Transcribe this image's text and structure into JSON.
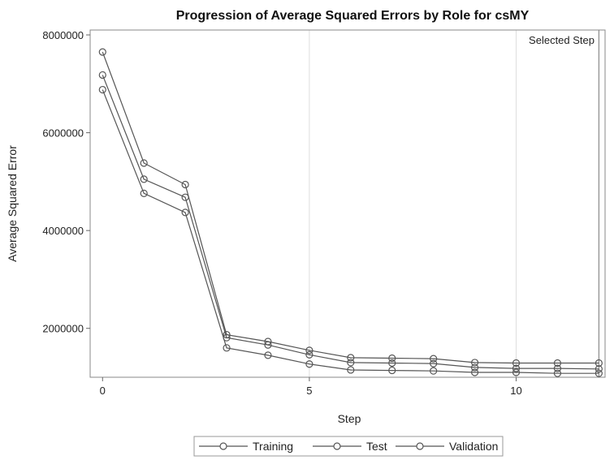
{
  "chart_data": {
    "type": "line",
    "title": "Progression of Average Squared Errors by Role for csMY",
    "xlabel": "Step",
    "ylabel": "Average Squared Error",
    "xlim": [
      -0.3,
      12.15
    ],
    "ylim": [
      1000000,
      8100000
    ],
    "xticks": [
      0,
      5,
      10
    ],
    "yticks": [
      2000000,
      4000000,
      6000000,
      8000000
    ],
    "x": [
      0,
      1,
      2,
      3,
      4,
      5,
      6,
      7,
      8,
      9,
      10,
      11,
      12
    ],
    "reference_lines": [
      5,
      10,
      12
    ],
    "annotation": "Selected Step",
    "legend_position": "bottom",
    "series": [
      {
        "name": "Training",
        "values": [
          6880000,
          4760000,
          4370000,
          1600000,
          1450000,
          1270000,
          1150000,
          1140000,
          1130000,
          1100000,
          1100000,
          1080000,
          1080000
        ]
      },
      {
        "name": "Test",
        "values": [
          7180000,
          5050000,
          4680000,
          1810000,
          1660000,
          1460000,
          1300000,
          1290000,
          1280000,
          1200000,
          1180000,
          1180000,
          1170000
        ]
      },
      {
        "name": "Validation",
        "values": [
          7650000,
          5380000,
          4940000,
          1870000,
          1730000,
          1550000,
          1400000,
          1390000,
          1380000,
          1300000,
          1290000,
          1290000,
          1290000
        ]
      }
    ]
  }
}
